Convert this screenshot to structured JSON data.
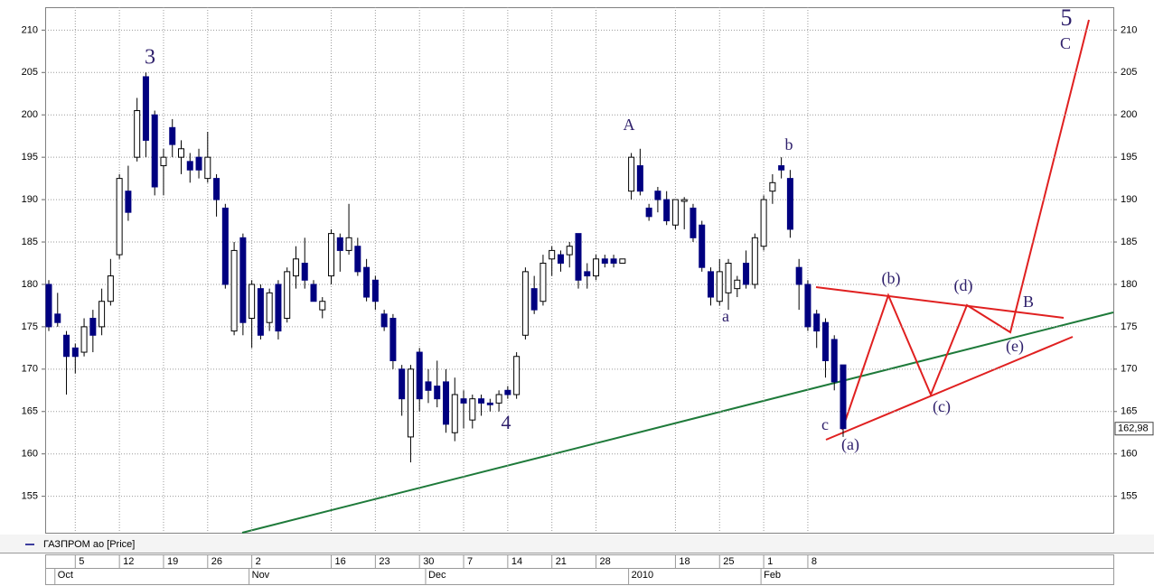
{
  "chart_data": {
    "type": "candlestick",
    "categories": [
      null,
      null,
      null,
      "5",
      null,
      null,
      null,
      null,
      "12",
      null,
      null,
      null,
      null,
      "19",
      null,
      null,
      null,
      null,
      "26",
      null,
      null,
      null,
      null,
      "2",
      null,
      null,
      null,
      null,
      null,
      null,
      null,
      null,
      "16",
      null,
      null,
      null,
      null,
      "23",
      null,
      null,
      null,
      null,
      "30",
      null,
      null,
      null,
      null,
      "7",
      null,
      null,
      null,
      null,
      "14",
      null,
      null,
      null,
      null,
      "21",
      null,
      null,
      null,
      null,
      "28",
      null,
      null,
      null,
      null,
      null,
      null,
      null,
      null,
      "18",
      null,
      null,
      null,
      null,
      "25",
      null,
      null,
      null,
      null,
      "1",
      null,
      null,
      null,
      null,
      "8",
      null,
      null,
      null,
      null
    ],
    "month_categories": [
      null,
      "Oct",
      null,
      null,
      null,
      null,
      null,
      null,
      null,
      null,
      null,
      null,
      null,
      null,
      null,
      null,
      null,
      null,
      null,
      null,
      null,
      null,
      null,
      "Nov",
      null,
      null,
      null,
      null,
      null,
      null,
      null,
      null,
      null,
      null,
      null,
      null,
      null,
      null,
      null,
      null,
      null,
      null,
      null,
      "Dec",
      null,
      null,
      null,
      null,
      null,
      null,
      null,
      null,
      null,
      null,
      null,
      null,
      null,
      null,
      null,
      null,
      null,
      null,
      null,
      null,
      null,
      null,
      "2010",
      null,
      null,
      null,
      null,
      null,
      null,
      null,
      null,
      null,
      null,
      null,
      null,
      null,
      null,
      "Feb",
      null,
      null,
      null,
      null,
      null,
      null,
      null,
      null,
      null
    ],
    "series": [
      {
        "name": "ГАЗПРОМ ао [Price]",
        "color": "#000080",
        "open": [
          180,
          176.5,
          174,
          172.5,
          172,
          176,
          175,
          178,
          183.5,
          191,
          195,
          204.5,
          200,
          194,
          198.5,
          195,
          194.5,
          195,
          192.5,
          192.5,
          189,
          174.5,
          185.5,
          176,
          179.5,
          175.5,
          180,
          176,
          181,
          182.5,
          180,
          177,
          181,
          185.5,
          184,
          184.5,
          182,
          180.5,
          176.5,
          176,
          170,
          162,
          172,
          168.5,
          168,
          168.5,
          162.5,
          166.5,
          164,
          166.5,
          166,
          166,
          167.5,
          167,
          174,
          179.5,
          178,
          183,
          183.5,
          183.5,
          186,
          181.5,
          181,
          183,
          183,
          182.5,
          191,
          194,
          189,
          191,
          190,
          187,
          189.8,
          189,
          187,
          181.5,
          178,
          179,
          179.5,
          182.5,
          180,
          184.5,
          191,
          194,
          192.5,
          182,
          180,
          176.5,
          175.5,
          173.5,
          170.5
        ],
        "high": [
          180.5,
          179,
          174.5,
          173,
          176,
          177,
          179.5,
          183,
          193,
          194,
          202,
          205,
          200.5,
          196,
          199.5,
          197,
          195.5,
          196,
          198,
          193,
          189.5,
          185,
          186,
          180.5,
          180,
          179.5,
          180.5,
          182,
          184.5,
          185.5,
          180.5,
          178.5,
          186.5,
          186,
          189.5,
          185.5,
          183,
          181,
          177,
          176.5,
          170.5,
          170.5,
          172.5,
          170,
          171,
          170,
          169,
          167.5,
          167,
          167,
          166.5,
          167.5,
          168,
          172,
          182,
          181,
          183.5,
          184.5,
          184,
          185,
          186,
          182.5,
          183.5,
          183.5,
          183.5,
          183,
          195.5,
          196,
          189.5,
          191.5,
          191,
          190,
          190.3,
          189.5,
          187.5,
          182,
          183,
          183,
          181,
          184,
          186,
          190.5,
          193,
          195,
          193.5,
          183,
          180.5,
          177,
          176,
          174,
          170.5
        ],
        "low": [
          174.5,
          175,
          167,
          169.5,
          171.5,
          172,
          174,
          177.5,
          183,
          187.5,
          194.5,
          195,
          190.5,
          190.5,
          195,
          193,
          192,
          192.5,
          192,
          188,
          179.5,
          174,
          174,
          172.5,
          173.5,
          174.5,
          173.5,
          175.5,
          179.5,
          179.5,
          178,
          176,
          180,
          181.5,
          183.5,
          181,
          178,
          177,
          174.5,
          170,
          164.5,
          159,
          165,
          166,
          165.5,
          162.5,
          161.5,
          163,
          163,
          164.5,
          165,
          165,
          166.5,
          166.5,
          173.5,
          176.5,
          177.5,
          181,
          181.5,
          182,
          179.5,
          179.5,
          180.5,
          182,
          182,
          182.5,
          190,
          190.5,
          187.5,
          188.5,
          187,
          186.5,
          186.5,
          185,
          181.5,
          177.5,
          177.5,
          177,
          178.5,
          179.5,
          179.5,
          184,
          189.5,
          192.5,
          185.5,
          177,
          174.5,
          172.5,
          169,
          167.5,
          162
        ],
        "close": [
          175,
          175.5,
          171.5,
          171.5,
          175,
          174,
          178,
          181,
          192.5,
          188.5,
          200.5,
          197,
          191.5,
          195,
          196.5,
          196,
          193.5,
          193.5,
          195,
          190,
          180,
          184,
          175.5,
          180,
          174,
          179,
          174.5,
          181.5,
          183,
          180.5,
          178,
          178,
          186,
          184,
          185.5,
          181.5,
          178.5,
          178,
          175,
          171,
          166.5,
          170,
          166.5,
          167.5,
          166.5,
          163.5,
          167,
          166,
          166.5,
          166,
          165.8,
          167,
          167,
          171.5,
          181.5,
          177,
          182.5,
          184,
          182.5,
          184.5,
          180.5,
          181,
          183,
          182.5,
          182.5,
          183,
          195,
          191,
          188,
          190,
          187.5,
          190,
          190,
          185.5,
          182,
          178.5,
          181.5,
          182.5,
          180.5,
          180,
          185.5,
          190,
          192,
          193.5,
          186.5,
          180,
          175,
          174.5,
          171,
          168.5,
          162.98
        ]
      }
    ],
    "last_price": {
      "value": 162.98,
      "label": "162,98"
    },
    "ylim": [
      150.7,
      212.7
    ],
    "yticks": [
      155,
      160,
      165,
      170,
      175,
      180,
      185,
      190,
      195,
      200,
      205,
      210
    ],
    "grid": true,
    "annotations": [
      "3",
      "A",
      "b",
      "a",
      "4",
      "c",
      "(a)",
      "(b)",
      "(c)",
      "(d)",
      "(e)",
      "B",
      "5",
      "C"
    ]
  }
}
